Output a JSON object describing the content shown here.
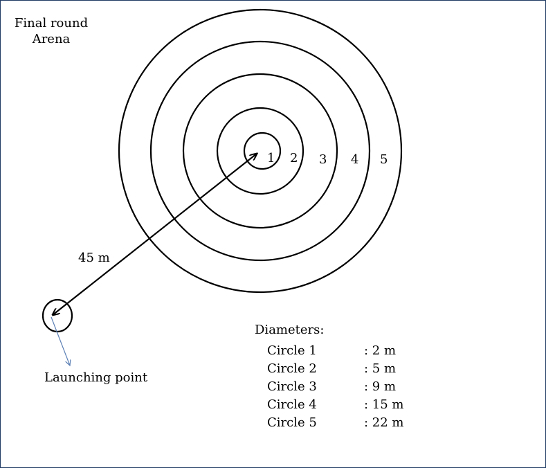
{
  "title": {
    "line1": "Final round",
    "line2": "Arena"
  },
  "rings": [
    {
      "number": "1"
    },
    {
      "number": "2"
    },
    {
      "number": "3"
    },
    {
      "number": "4"
    },
    {
      "number": "5"
    }
  ],
  "distance_label": "45 m",
  "launch_label": "Launching point",
  "diameters": {
    "heading": "Diameters:",
    "rows": [
      {
        "name": "Circle 1",
        "value": ": 2 m"
      },
      {
        "name": "Circle 2",
        "value": ": 5 m"
      },
      {
        "name": "Circle 3",
        "value": ": 9 m"
      },
      {
        "name": "Circle 4",
        "value": ": 15 m"
      },
      {
        "name": "Circle 5",
        "value": ": 22 m"
      }
    ]
  },
  "colors": {
    "frame": "#1f3a63",
    "line": "#000000",
    "pointer": "#5b7fb5"
  }
}
